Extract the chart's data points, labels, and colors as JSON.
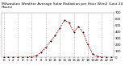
{
  "title": "Milwaukee Weather Average Solar Radiation per Hour W/m2 (Last 24 Hours)",
  "title_line1": "Milwaukee Weather Average Solar Radiation per Hour W/m2 (Last 24 Hours)",
  "x": [
    0,
    1,
    2,
    3,
    4,
    5,
    6,
    7,
    8,
    9,
    10,
    11,
    12,
    13,
    14,
    15,
    16,
    17,
    18,
    19,
    20,
    21,
    22,
    23
  ],
  "y": [
    0,
    0,
    0,
    0,
    2,
    3,
    10,
    25,
    80,
    155,
    250,
    340,
    460,
    580,
    540,
    400,
    480,
    390,
    200,
    60,
    15,
    5,
    0,
    0
  ],
  "line_color": "#cc0000",
  "marker_color": "#000000",
  "bg_color": "#ffffff",
  "ylim": [
    0,
    700
  ],
  "xlim": [
    -0.5,
    23.5
  ],
  "yticks": [
    0,
    100,
    200,
    300,
    400,
    500,
    600,
    700
  ],
  "xtick_positions": [
    0,
    1,
    2,
    3,
    4,
    5,
    6,
    7,
    8,
    9,
    10,
    11,
    12,
    13,
    14,
    15,
    16,
    17,
    18,
    19,
    20,
    21,
    22,
    23
  ],
  "xtick_labels": [
    "0",
    "1",
    "2",
    "3",
    "4",
    "5",
    "6",
    "7",
    "8",
    "9",
    "10",
    "11",
    "12",
    "13",
    "14",
    "15",
    "16",
    "17",
    "18",
    "19",
    "20",
    "21",
    "22",
    "23"
  ],
  "grid_x_positions": [
    0,
    3,
    6,
    9,
    12,
    15,
    18,
    21
  ],
  "grid_color": "#999999",
  "title_fontsize": 3.2,
  "tick_fontsize": 2.8,
  "line_width": 0.7,
  "marker_size": 1.0
}
